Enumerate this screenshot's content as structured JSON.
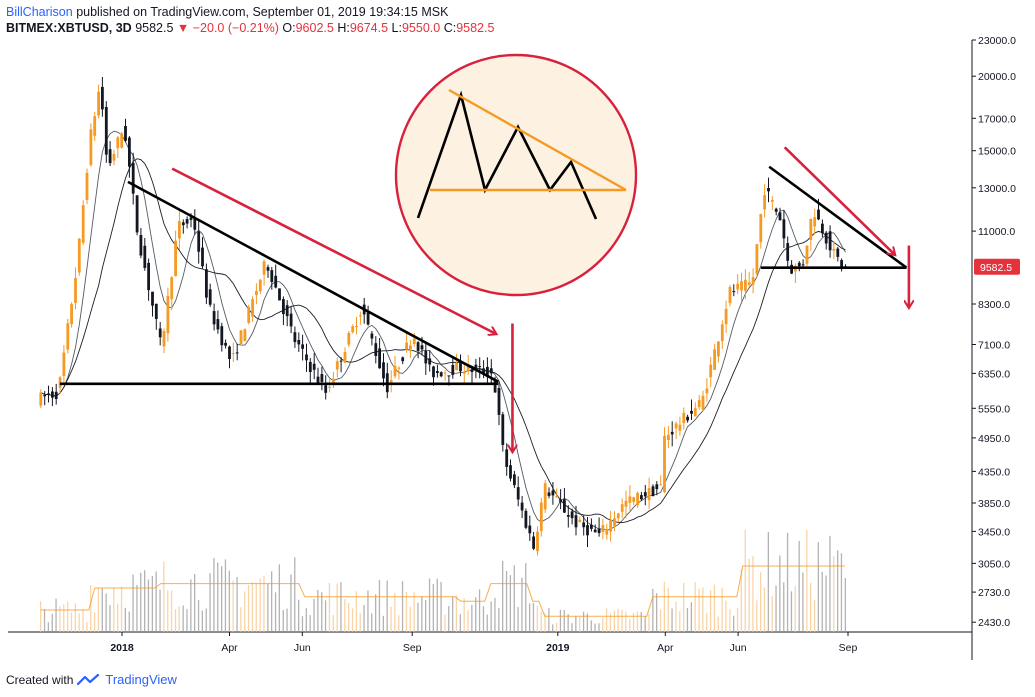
{
  "header": {
    "author": "BillCharison",
    "published": "published on TradingView.com, September 01, 2019 19:34:15 MSK",
    "symbol": "BITMEX:XBTUSD, 3D",
    "last": "9582.5",
    "change": "▼ −20.0 (−0.21%)",
    "o_label": "O:",
    "o": "9602.5",
    "h_label": "H:",
    "h": "9674.5",
    "l_label": "L:",
    "l": "9550.0",
    "c_label": "C:",
    "c": "9582.5"
  },
  "footer": {
    "created_with": "Created with",
    "brand": "TradingView"
  },
  "colors": {
    "up": "#f59a23",
    "down": "#131722",
    "accent": "#d8213d",
    "pattern": "#f59a23",
    "circle_bg": "#fdf1e1",
    "price_tag": "#e5323b"
  },
  "chart_data": {
    "type": "candlestick",
    "title": "",
    "y_scale": "log",
    "y_ticks": [
      23000,
      20000,
      17000,
      15000,
      13000,
      11000,
      9582.5,
      8300,
      7100,
      6350,
      5550,
      4950,
      4350,
      3850,
      3450,
      3050,
      2730,
      2430
    ],
    "y_tick_labels": [
      "23000.0",
      "20000.0",
      "17000.0",
      "15000.0",
      "13000.0",
      "11000.0",
      "9582.5",
      "8300.0",
      "7100.0",
      "6350.0",
      "5550.0",
      "4950.0",
      "4350.0",
      "3850.0",
      "3450.0",
      "3050.0",
      "2730.0",
      "2430.0"
    ],
    "last_price_label": "9582.5",
    "x_ticks": [
      {
        "label": "2018",
        "bold": true,
        "date": "2018-01-01"
      },
      {
        "label": "Apr",
        "bold": false,
        "date": "2018-04-01"
      },
      {
        "label": "Jun",
        "bold": false,
        "date": "2018-06-01"
      },
      {
        "label": "Sep",
        "bold": false,
        "date": "2018-09-01"
      },
      {
        "label": "2019",
        "bold": true,
        "date": "2019-01-01"
      },
      {
        "label": "Apr",
        "bold": false,
        "date": "2019-04-01"
      },
      {
        "label": "Jun",
        "bold": false,
        "date": "2019-06-01"
      },
      {
        "label": "Sep",
        "bold": false,
        "date": "2019-09-01"
      }
    ],
    "price_path": [
      [
        "2017-10-25",
        5750
      ],
      [
        "2017-11-12",
        5900
      ],
      [
        "2017-11-28",
        9800
      ],
      [
        "2017-12-08",
        15500
      ],
      [
        "2017-12-17",
        19500
      ],
      [
        "2017-12-23",
        14000
      ],
      [
        "2018-01-06",
        16500
      ],
      [
        "2018-01-17",
        11000
      ],
      [
        "2018-02-06",
        7000
      ],
      [
        "2018-02-20",
        11200
      ],
      [
        "2018-03-05",
        11500
      ],
      [
        "2018-03-18",
        8200
      ],
      [
        "2018-04-06",
        6600
      ],
      [
        "2018-05-05",
        9800
      ],
      [
        "2018-05-29",
        7200
      ],
      [
        "2018-06-24",
        5900
      ],
      [
        "2018-07-24",
        8200
      ],
      [
        "2018-08-14",
        6000
      ],
      [
        "2018-09-05",
        7400
      ],
      [
        "2018-09-20",
        6350
      ],
      [
        "2018-10-15",
        6500
      ],
      [
        "2018-11-11",
        6350
      ],
      [
        "2018-11-20",
        4600
      ],
      [
        "2018-12-15",
        3250
      ],
      [
        "2018-12-24",
        4100
      ],
      [
        "2019-01-20",
        3550
      ],
      [
        "2019-02-08",
        3400
      ],
      [
        "2019-03-01",
        3850
      ],
      [
        "2019-04-01",
        4100
      ],
      [
        "2019-04-03",
        4950
      ],
      [
        "2019-05-05",
        5700
      ],
      [
        "2019-05-28",
        8700
      ],
      [
        "2019-06-16",
        9000
      ],
      [
        "2019-06-26",
        13000
      ],
      [
        "2019-07-10",
        11500
      ],
      [
        "2019-07-17",
        9500
      ],
      [
        "2019-07-28",
        9600
      ],
      [
        "2019-08-06",
        12000
      ],
      [
        "2019-08-24",
        10000
      ],
      [
        "2019-09-01",
        9582.5
      ]
    ],
    "annotations": [
      {
        "type": "descending-triangle",
        "resistance": [
          [
            "2018-01-06",
            13300
          ],
          [
            "2018-11-12",
            6150
          ]
        ],
        "support": [
          [
            "2017-11-10",
            6100
          ],
          [
            "2018-11-12",
            6100
          ]
        ]
      },
      {
        "type": "descending-triangle",
        "resistance": [
          [
            "2019-06-27",
            14100
          ],
          [
            "2019-10-20",
            9550
          ]
        ],
        "support": [
          [
            "2019-06-20",
            9550
          ],
          [
            "2019-10-20",
            9550
          ]
        ]
      },
      {
        "type": "arrow",
        "from": [
          "2018-02-12",
          14000
        ],
        "to": [
          "2018-11-10",
          7400
        ]
      },
      {
        "type": "arrow",
        "from": [
          "2018-11-24",
          7700
        ],
        "to": [
          "2018-11-24",
          4700
        ]
      },
      {
        "type": "arrow",
        "from": [
          "2019-07-10",
          15200
        ],
        "to": [
          "2019-10-10",
          10050
        ]
      },
      {
        "type": "arrow",
        "from": [
          "2019-10-22",
          10400
        ],
        "to": [
          "2019-10-22",
          8200
        ]
      }
    ],
    "inset": {
      "type": "descending-triangle-schematic"
    }
  }
}
